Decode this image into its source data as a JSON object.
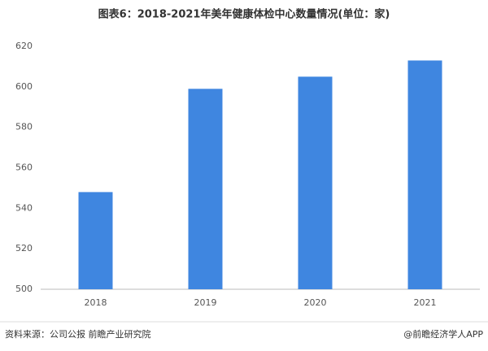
{
  "chart_data": {
    "type": "bar",
    "title": "图表6：2018-2021年美年健康体检中心数量情况(单位：家)",
    "categories": [
      "2018",
      "2019",
      "2020",
      "2021"
    ],
    "values": [
      548,
      599,
      605,
      613
    ],
    "color": "#3f86e0",
    "ylim": [
      500,
      620
    ],
    "yticks": [
      500,
      520,
      540,
      560,
      580,
      600,
      620
    ],
    "grid": false
  },
  "footer": {
    "source": "资料来源：公司公报 前瞻产业研究院",
    "credit": "@前瞻经济学人APP"
  }
}
